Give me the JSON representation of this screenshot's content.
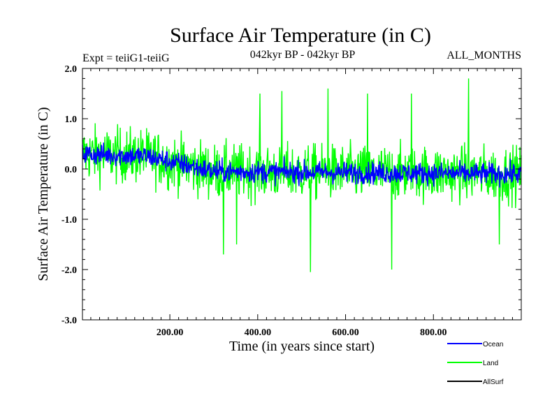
{
  "chart_data": {
    "type": "line",
    "title": "Surface Air Temperature (in C)",
    "subtitle_left": "Expt = teiiG1-teiiG",
    "subtitle_center": "042kyr BP - 042kyr BP",
    "subtitle_right": "ALL_MONTHS",
    "xlabel": "Time (in years since start)",
    "ylabel": "Surface Air Temperature (in C)",
    "xlim": [
      1,
      1000
    ],
    "ylim": [
      -3.0,
      2.0
    ],
    "xticks": [
      200,
      400,
      600,
      800
    ],
    "xtick_labels": [
      "200.00",
      "400.00",
      "600.00",
      "800.00"
    ],
    "yticks": [
      2.0,
      1.0,
      0.0,
      -1.0,
      -2.0,
      -3.0
    ],
    "ytick_labels": [
      "2.0",
      "1.0",
      "0.0",
      "-1.0",
      "-2.0",
      "-3.0"
    ],
    "grid": false,
    "legend_position": "bottom-right",
    "series": [
      {
        "name": "Land",
        "color": "#00ff00",
        "description_points": [
          {
            "x": 1,
            "y": 0.3
          },
          {
            "x": 60,
            "y": 0.3
          },
          {
            "x": 120,
            "y": 0.25
          },
          {
            "x": 200,
            "y": 0.15
          },
          {
            "x": 250,
            "y": 0.1
          },
          {
            "x": 300,
            "y": -0.05
          },
          {
            "x": 322,
            "y": -1.7
          },
          {
            "x": 352,
            "y": -1.5
          },
          {
            "x": 405,
            "y": 1.5
          },
          {
            "x": 455,
            "y": 1.55
          },
          {
            "x": 520,
            "y": -2.05
          },
          {
            "x": 560,
            "y": 1.6
          },
          {
            "x": 600,
            "y": -0.1
          },
          {
            "x": 650,
            "y": 1.5
          },
          {
            "x": 705,
            "y": -2.0
          },
          {
            "x": 750,
            "y": 1.5
          },
          {
            "x": 800,
            "y": -0.1
          },
          {
            "x": 880,
            "y": 1.8
          },
          {
            "x": 950,
            "y": -1.5
          },
          {
            "x": 1000,
            "y": -0.1
          }
        ],
        "mean_trend": [
          [
            1,
            0.3
          ],
          [
            150,
            0.25
          ],
          [
            250,
            0.05
          ],
          [
            300,
            -0.05
          ],
          [
            1000,
            -0.1
          ]
        ],
        "amplitude": 0.55
      },
      {
        "name": "Ocean",
        "color": "#0000ff",
        "mean_trend": [
          [
            1,
            0.3
          ],
          [
            150,
            0.25
          ],
          [
            250,
            0.05
          ],
          [
            300,
            -0.05
          ],
          [
            1000,
            -0.1
          ]
        ],
        "amplitude": 0.22
      },
      {
        "name": "AllSurf",
        "color": "#000000",
        "mean_trend": [],
        "amplitude": 0
      }
    ]
  }
}
